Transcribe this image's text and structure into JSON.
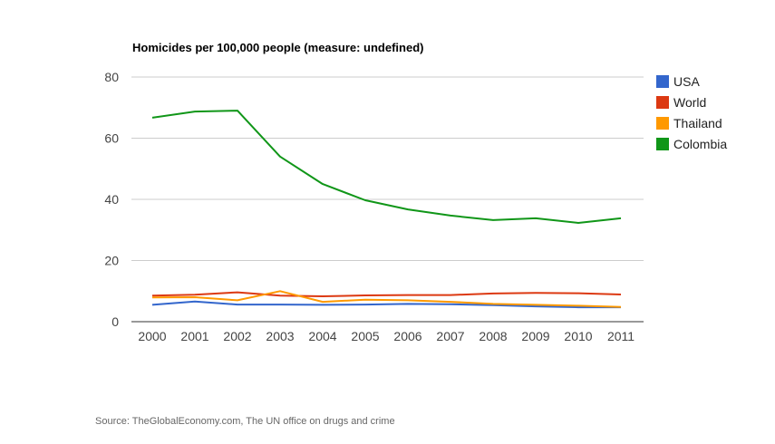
{
  "chart_data": {
    "type": "line",
    "title": "Homicides per 100,000 people (measure: undefined)",
    "xlabel": "",
    "ylabel": "",
    "x": [
      "2000",
      "2001",
      "2002",
      "2003",
      "2004",
      "2005",
      "2006",
      "2007",
      "2008",
      "2009",
      "2010",
      "2011"
    ],
    "ylim": [
      0,
      80
    ],
    "yticks": [
      "0",
      "20",
      "40",
      "60",
      "80"
    ],
    "ytick_values": [
      0,
      20,
      40,
      60,
      80
    ],
    "grid": true,
    "legend_position": "right",
    "series": [
      {
        "name": "USA",
        "color": "#3366cc",
        "values": [
          5.5,
          6.6,
          5.6,
          5.6,
          5.5,
          5.6,
          5.8,
          5.7,
          5.4,
          5.0,
          4.7,
          4.7
        ]
      },
      {
        "name": "World",
        "color": "#dc3912",
        "values": [
          8.5,
          8.8,
          9.6,
          8.5,
          8.3,
          8.6,
          8.7,
          8.7,
          9.2,
          9.4,
          9.3,
          8.9
        ]
      },
      {
        "name": "Thailand",
        "color": "#ff9900",
        "values": [
          7.9,
          8.0,
          7.0,
          10.0,
          6.5,
          7.2,
          7.0,
          6.5,
          5.8,
          5.5,
          5.2,
          4.8
        ]
      },
      {
        "name": "Colombia",
        "color": "#109618",
        "values": [
          66.7,
          68.7,
          69.0,
          54.0,
          45.0,
          39.7,
          36.7,
          34.7,
          33.2,
          33.8,
          32.3,
          33.8
        ]
      }
    ]
  },
  "source": "Source: TheGlobalEconomy.com, The UN office on drugs and crime"
}
